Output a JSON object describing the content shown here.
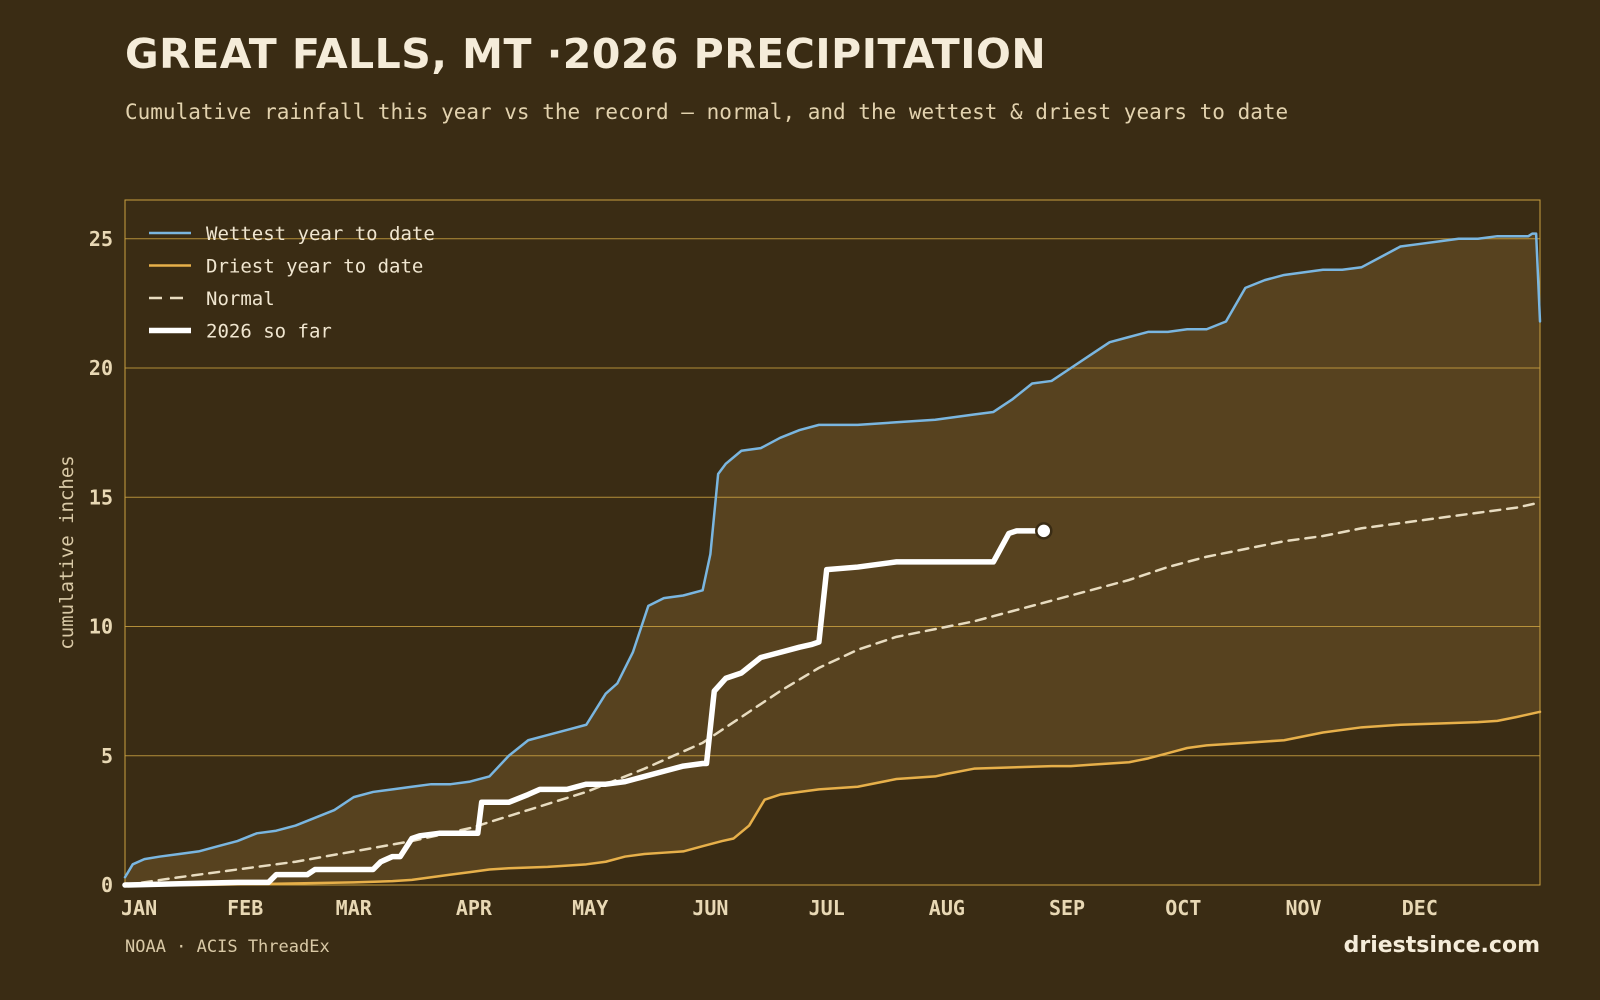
{
  "header": {
    "title": "GREAT FALLS, MT ·2026 PRECIPITATION",
    "subtitle": "Cumulative rainfall this year vs the record — normal, and the wettest & driest years to date"
  },
  "footer": {
    "source": "NOAA · ACIS ThreadEx",
    "brand": "driestsince.com"
  },
  "colors": {
    "background": "#3a2c14",
    "band": "#57421f",
    "grid": "#c9a040",
    "wettest": "#7ab6e0",
    "driest": "#e7b04a",
    "normal": "#e8dcc0",
    "current": "#ffffff"
  },
  "chart_data": {
    "type": "line",
    "ylabel": "cumulative inches",
    "xlabel": "",
    "ylim": [
      0,
      26.5
    ],
    "xlim": [
      1,
      366
    ],
    "yticks": [
      0,
      5,
      10,
      15,
      20,
      25
    ],
    "grid": true,
    "legend_position": "top-left",
    "months": [
      {
        "label": "JAN",
        "day": 1
      },
      {
        "label": "FEB",
        "day": 32
      },
      {
        "label": "MAR",
        "day": 60
      },
      {
        "label": "APR",
        "day": 91
      },
      {
        "label": "MAY",
        "day": 121
      },
      {
        "label": "JUN",
        "day": 152
      },
      {
        "label": "JUL",
        "day": 182
      },
      {
        "label": "AUG",
        "day": 213
      },
      {
        "label": "SEP",
        "day": 244
      },
      {
        "label": "OCT",
        "day": 274
      },
      {
        "label": "NOV",
        "day": 305
      },
      {
        "label": "DEC",
        "day": 335
      }
    ],
    "series": [
      {
        "key": "wettest",
        "name": "Wettest year to date",
        "x": [
          1,
          3,
          6,
          10,
          15,
          20,
          25,
          30,
          35,
          40,
          45,
          50,
          55,
          60,
          65,
          70,
          75,
          80,
          85,
          90,
          95,
          100,
          105,
          110,
          115,
          120,
          125,
          128,
          132,
          136,
          140,
          145,
          150,
          152,
          154,
          156,
          160,
          165,
          170,
          175,
          180,
          185,
          190,
          200,
          210,
          215,
          220,
          225,
          230,
          235,
          240,
          245,
          250,
          255,
          260,
          265,
          270,
          275,
          280,
          285,
          290,
          295,
          300,
          305,
          310,
          315,
          320,
          325,
          330,
          335,
          340,
          345,
          350,
          355,
          360,
          363,
          364,
          365,
          366
        ],
        "y": [
          0.3,
          0.8,
          1.0,
          1.1,
          1.2,
          1.3,
          1.5,
          1.7,
          2.0,
          2.1,
          2.3,
          2.6,
          2.9,
          3.4,
          3.6,
          3.7,
          3.8,
          3.9,
          3.9,
          4.0,
          4.2,
          5.0,
          5.6,
          5.8,
          6.0,
          6.2,
          7.4,
          7.8,
          9.0,
          10.8,
          11.1,
          11.2,
          11.4,
          12.8,
          15.9,
          16.3,
          16.8,
          16.9,
          17.3,
          17.6,
          17.8,
          17.8,
          17.8,
          17.9,
          18.0,
          18.1,
          18.2,
          18.3,
          18.8,
          19.4,
          19.5,
          20.0,
          20.5,
          21.0,
          21.2,
          21.4,
          21.4,
          21.5,
          21.5,
          21.8,
          23.1,
          23.4,
          23.6,
          23.7,
          23.8,
          23.8,
          23.9,
          24.3,
          24.7,
          24.8,
          24.9,
          25.0,
          25.0,
          25.1,
          25.1,
          25.1,
          25.2,
          25.2,
          21.8
        ]
      },
      {
        "key": "driest",
        "name": "Driest year to date",
        "x": [
          1,
          20,
          40,
          60,
          70,
          75,
          80,
          85,
          90,
          95,
          100,
          110,
          120,
          125,
          130,
          135,
          140,
          145,
          150,
          155,
          158,
          162,
          166,
          170,
          180,
          190,
          200,
          210,
          213,
          220,
          230,
          240,
          245,
          250,
          255,
          260,
          265,
          270,
          275,
          280,
          290,
          300,
          310,
          320,
          330,
          340,
          350,
          355,
          360,
          366
        ],
        "y": [
          0.0,
          0.0,
          0.05,
          0.1,
          0.15,
          0.2,
          0.3,
          0.4,
          0.5,
          0.6,
          0.65,
          0.7,
          0.8,
          0.9,
          1.1,
          1.2,
          1.25,
          1.3,
          1.5,
          1.7,
          1.8,
          2.3,
          3.3,
          3.5,
          3.7,
          3.8,
          4.1,
          4.2,
          4.3,
          4.5,
          4.55,
          4.6,
          4.6,
          4.65,
          4.7,
          4.75,
          4.9,
          5.1,
          5.3,
          5.4,
          5.5,
          5.6,
          5.9,
          6.1,
          6.2,
          6.25,
          6.3,
          6.35,
          6.5,
          6.7
        ]
      },
      {
        "key": "normal",
        "name": "Normal",
        "x": [
          1,
          15,
          30,
          45,
          60,
          75,
          90,
          105,
          120,
          135,
          150,
          160,
          170,
          180,
          190,
          200,
          210,
          220,
          230,
          240,
          250,
          260,
          270,
          280,
          290,
          300,
          310,
          320,
          330,
          340,
          350,
          360,
          366
        ],
        "y": [
          0.0,
          0.3,
          0.6,
          0.9,
          1.3,
          1.7,
          2.2,
          2.9,
          3.6,
          4.5,
          5.5,
          6.5,
          7.5,
          8.4,
          9.1,
          9.6,
          9.9,
          10.2,
          10.6,
          11.0,
          11.4,
          11.8,
          12.3,
          12.7,
          13.0,
          13.3,
          13.5,
          13.8,
          14.0,
          14.2,
          14.4,
          14.6,
          14.8
        ]
      },
      {
        "key": "current",
        "name": "2026 so far",
        "x": [
          1,
          30,
          38,
          40,
          48,
          50,
          65,
          67,
          70,
          72,
          75,
          77,
          82,
          92,
          93,
          100,
          105,
          108,
          115,
          120,
          125,
          130,
          135,
          140,
          145,
          150,
          151,
          153,
          156,
          160,
          165,
          170,
          175,
          178,
          180,
          182,
          190,
          200,
          210,
          225,
          229,
          231,
          238
        ],
        "y": [
          0.0,
          0.1,
          0.1,
          0.4,
          0.4,
          0.6,
          0.6,
          0.9,
          1.1,
          1.1,
          1.8,
          1.9,
          2.0,
          2.0,
          3.2,
          3.2,
          3.5,
          3.7,
          3.7,
          3.9,
          3.9,
          4.0,
          4.2,
          4.4,
          4.6,
          4.7,
          4.7,
          7.5,
          8.0,
          8.2,
          8.8,
          9.0,
          9.2,
          9.3,
          9.4,
          12.2,
          12.3,
          12.5,
          12.5,
          12.5,
          13.6,
          13.7,
          13.7
        ]
      }
    ]
  }
}
